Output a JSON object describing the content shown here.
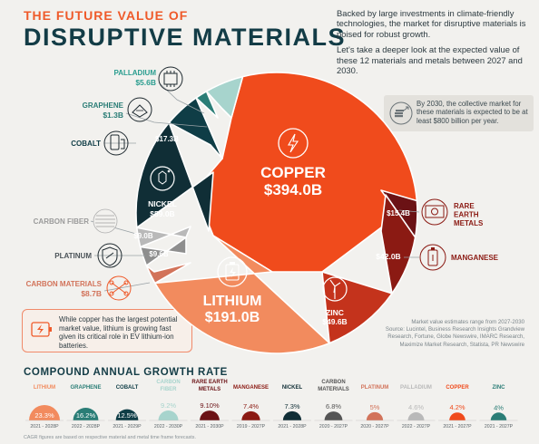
{
  "header": {
    "kicker": "THE FUTURE VALUE OF",
    "title": "DISRUPTIVE MATERIALS",
    "intro_p1": "Backed by large investments in climate-friendly technologies, the market for disruptive materials is poised for robust growth.",
    "intro_p2": "Let's take a deeper look at the expected value of these 12 materials and metals between 2027 and 2030."
  },
  "callout": "By 2030, the collective market for these materials is expected to be at least $800 billion per year.",
  "note": "While copper has the largest potential market value, lithium is growing fast given its critical role in EV lithium-ion batteries.",
  "source": [
    "Market value estimates range from 2027-2030",
    "Source: Lucintel, Business Research Insights Grandview",
    "Research, Fortune, Globe Newswire, IMARC Research,",
    "Maximize Market Research, Statista, PR Newswire"
  ],
  "cagr_title": "COMPOUND ANNUAL GROWTH RATE",
  "cagr_note": "CAGR figures are based on respective material and metal time frame forecasts.",
  "colors": {
    "copper": "#f04b1c",
    "lithium": "#f28b5e",
    "zinc": "#c4331c",
    "manganese": "#8b1a13",
    "rare_earth": "#6b1215",
    "palladium": "#a7d4cd",
    "graphene": "#2a7d76",
    "cobalt": "#0f3d46",
    "nickel": "#102e36",
    "carbon_fiber": "#b9b9b9",
    "platinum": "#8e8e8e",
    "carbon_materials": "#d2735a"
  },
  "chart_data": {
    "type": "pie",
    "title": "DISRUPTIVE MATERIALS",
    "unit": "USD billions",
    "slices": [
      {
        "name": "COPPER",
        "value": 394.0,
        "label": "$394.0B",
        "color": "#f04b1c"
      },
      {
        "name": "RARE EARTH METALS",
        "value": 15.4,
        "label": "$15.4B",
        "color": "#6b1215"
      },
      {
        "name": "MANGANESE",
        "value": 42.0,
        "label": "$42.0B",
        "color": "#8b1a13"
      },
      {
        "name": "ZINC",
        "value": 49.6,
        "label": "$49.6B",
        "color": "#c4331c"
      },
      {
        "name": "LITHIUM",
        "value": 191.0,
        "label": "$191.0B",
        "color": "#f28b5e"
      },
      {
        "name": "CARBON MATERIALS",
        "value": 8.7,
        "label": "$8.7B",
        "color": "#d2735a"
      },
      {
        "name": "PLATINUM",
        "value": 9.6,
        "label": "$9.6B",
        "color": "#8e8e8e"
      },
      {
        "name": "CARBON FIBER",
        "value": 9.0,
        "label": "$9.0B",
        "color": "#b9b9b9"
      },
      {
        "name": "NICKEL",
        "value": 59.0,
        "label": "$59.0B",
        "color": "#102e36"
      },
      {
        "name": "COBALT",
        "value": 17.3,
        "label": "$17.3B",
        "color": "#0f3d46"
      },
      {
        "name": "GRAPHENE",
        "value": 1.3,
        "label": "$1.3B",
        "color": "#2a7d76"
      },
      {
        "name": "PALLADIUM",
        "value": 5.6,
        "label": "$5.6B",
        "color": "#a7d4cd"
      }
    ],
    "cagr": [
      {
        "name": [
          "LITHIUM"
        ],
        "value": 23.3,
        "label": "23.3%",
        "period": "2021 - 2028P",
        "color": "#f28b5e"
      },
      {
        "name": [
          "GRAPHENE"
        ],
        "value": 16.2,
        "label": "16.2%",
        "period": "2022 - 2028P",
        "color": "#2a7d76"
      },
      {
        "name": [
          "COBALT"
        ],
        "value": 12.5,
        "label": "12.5%",
        "period": "2021 - 2029P",
        "color": "#0f3d46"
      },
      {
        "name": [
          "CARBON",
          "FIBER"
        ],
        "value": 9.2,
        "label": "9.2%",
        "period": "2022 - 2030P",
        "color": "#a7d4cd"
      },
      {
        "name": [
          "RARE EARTH",
          "METALS"
        ],
        "value": 9.1,
        "label": "9.10%",
        "period": "2021 - 2030P",
        "color": "#6b1215"
      },
      {
        "name": [
          "MANGANESE"
        ],
        "value": 7.4,
        "label": "7.4%",
        "period": "2019 - 2027P",
        "color": "#8b1a13"
      },
      {
        "name": [
          "NICKEL"
        ],
        "value": 7.3,
        "label": "7.3%",
        "period": "2021 - 2028P",
        "color": "#102e36"
      },
      {
        "name": [
          "CARBON",
          "MATERIALS"
        ],
        "value": 6.8,
        "label": "6.8%",
        "period": "2020 - 2027P",
        "color": "#555555"
      },
      {
        "name": [
          "PLATINUM"
        ],
        "value": 5.0,
        "label": "5%",
        "period": "2020 - 2027P",
        "color": "#d2735a"
      },
      {
        "name": [
          "PALLADIUM"
        ],
        "value": 4.6,
        "label": "4.6%",
        "period": "2022 - 2027P",
        "color": "#b9b9b9"
      },
      {
        "name": [
          "COPPER"
        ],
        "value": 4.2,
        "label": "4.2%",
        "period": "2021 - 2027P",
        "color": "#f04b1c"
      },
      {
        "name": [
          "ZINC"
        ],
        "value": 4.0,
        "label": "4%",
        "period": "2021 - 2027P",
        "color": "#2a7d76"
      }
    ]
  }
}
